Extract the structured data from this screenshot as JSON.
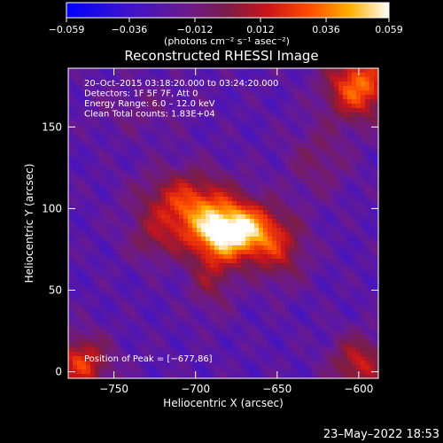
{
  "chart_data": {
    "type": "heatmap",
    "title": "Reconstructed RHESSI Image",
    "xlabel": "Heliocentric X (arcsec)",
    "ylabel": "Heliocentric Y (arcsec)",
    "xlim": [
      -778,
      -588
    ],
    "ylim": [
      -4,
      186
    ],
    "xticks": [
      -750,
      -700,
      -650,
      -600
    ],
    "xtick_labels": [
      "−750",
      "−700",
      "−650",
      "−600"
    ],
    "yticks": [
      0,
      50,
      100,
      150
    ],
    "ytick_labels": [
      "0",
      "50",
      "100",
      "150"
    ],
    "grid": false,
    "colorbar": {
      "min": -0.059,
      "max": 0.059,
      "ticks": [
        -0.059,
        -0.036,
        -0.012,
        0.012,
        0.036,
        0.059
      ],
      "tick_labels": [
        "−0.059",
        "−0.036",
        "−0.012",
        "0.012",
        "0.036",
        "0.059"
      ],
      "unit_label": "(photons cm⁻² s⁻¹ asec⁻²)"
    },
    "annotations": [
      "20–Oct–2015 03:18:20.000 to 03:24:20.000",
      "Detectors: 1F 5F 7F, Att 0",
      "Energy Range: 6.0 – 12.0 keV",
      "Clean     Total counts: 1.83E+04"
    ],
    "peak_label": "Position of Peak = [−677,86]",
    "peak": [
      -677,
      86
    ],
    "sources": [
      {
        "x": -676,
        "y": 86,
        "sx": 18,
        "sy": 12,
        "amp": 1.0
      },
      {
        "x": -705,
        "y": 103,
        "sx": 20,
        "sy": 14,
        "amp": 0.55
      },
      {
        "x": -690,
        "y": 60,
        "sx": 10,
        "sy": 16,
        "amp": 0.3
      },
      {
        "x": -648,
        "y": 72,
        "sx": 12,
        "sy": 14,
        "amp": 0.3
      },
      {
        "x": -725,
        "y": 80,
        "sx": 12,
        "sy": 10,
        "amp": 0.22
      },
      {
        "x": -600,
        "y": 175,
        "sx": 14,
        "sy": 14,
        "amp": 0.7
      },
      {
        "x": -770,
        "y": 5,
        "sx": 12,
        "sy": 12,
        "amp": 0.55
      },
      {
        "x": -600,
        "y": 5,
        "sx": 12,
        "sy": 12,
        "amp": 0.45
      },
      {
        "x": -625,
        "y": 130,
        "sx": 14,
        "sy": 16,
        "amp": 0.2
      },
      {
        "x": -735,
        "y": 160,
        "sx": 20,
        "sy": 12,
        "amp": 0.12
      }
    ]
  },
  "timestamp": "23–May–2022 18:53"
}
